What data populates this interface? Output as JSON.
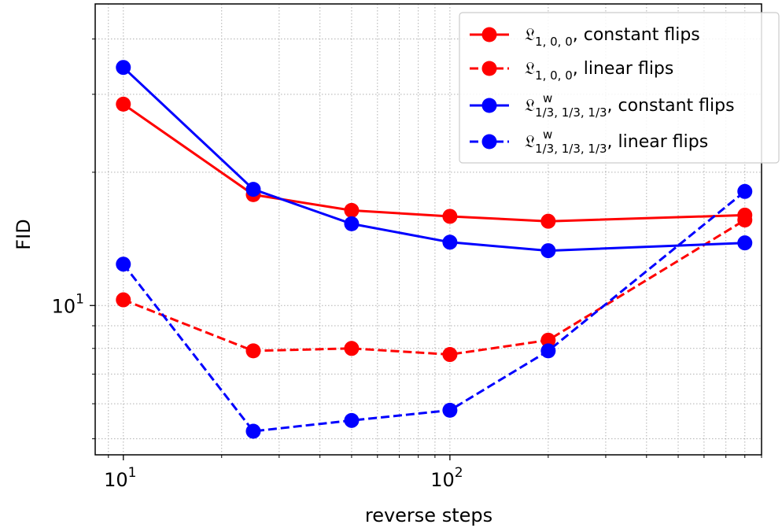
{
  "chart_data": {
    "type": "line",
    "xscale": "log",
    "yscale": "log",
    "xlabel": "reverse steps",
    "ylabel": "FID",
    "x_tick_labels": [
      {
        "value": 10,
        "base": "10",
        "exp": "1"
      },
      {
        "value": 100,
        "base": "10",
        "exp": "2"
      }
    ],
    "y_tick_labels": [
      {
        "value": 10,
        "base": "10",
        "exp": "1"
      }
    ],
    "xlim": [
      8.2,
      900
    ],
    "ylim": [
      4.6,
      48
    ],
    "grid": true,
    "legend_position": "top-right",
    "series": [
      {
        "name_parts": {
          "symbol": "𝔏",
          "sub": "1, 0, 0",
          "sup": "",
          "suffix": ", constant flips"
        },
        "color": "#ff0000",
        "linestyle": "solid",
        "x": [
          10,
          25,
          50,
          100,
          200,
          800
        ],
        "y": [
          28.5,
          17.8,
          16.4,
          15.9,
          15.5,
          16.0
        ]
      },
      {
        "name_parts": {
          "symbol": "𝔏",
          "sub": "1, 0, 0",
          "sup": "",
          "suffix": ", linear flips"
        },
        "color": "#ff0000",
        "linestyle": "dashed",
        "x": [
          10,
          25,
          50,
          100,
          200,
          800
        ],
        "y": [
          10.3,
          7.9,
          8.0,
          7.75,
          8.35,
          15.6
        ]
      },
      {
        "name_parts": {
          "symbol": "𝔏",
          "sub": "1/3, 1/3, 1/3",
          "sup": "w",
          "suffix": ", constant flips"
        },
        "color": "#0000ff",
        "linestyle": "solid",
        "x": [
          10,
          25,
          50,
          100,
          200,
          800
        ],
        "y": [
          34.5,
          18.3,
          15.3,
          13.9,
          13.3,
          13.85
        ]
      },
      {
        "name_parts": {
          "symbol": "𝔏",
          "sub": "1/3, 1/3, 1/3",
          "sup": "w",
          "suffix": ", linear flips"
        },
        "color": "#0000ff",
        "linestyle": "dashed",
        "x": [
          10,
          25,
          50,
          100,
          200,
          800
        ],
        "y": [
          12.4,
          5.2,
          5.5,
          5.8,
          7.9,
          18.1
        ]
      }
    ]
  }
}
